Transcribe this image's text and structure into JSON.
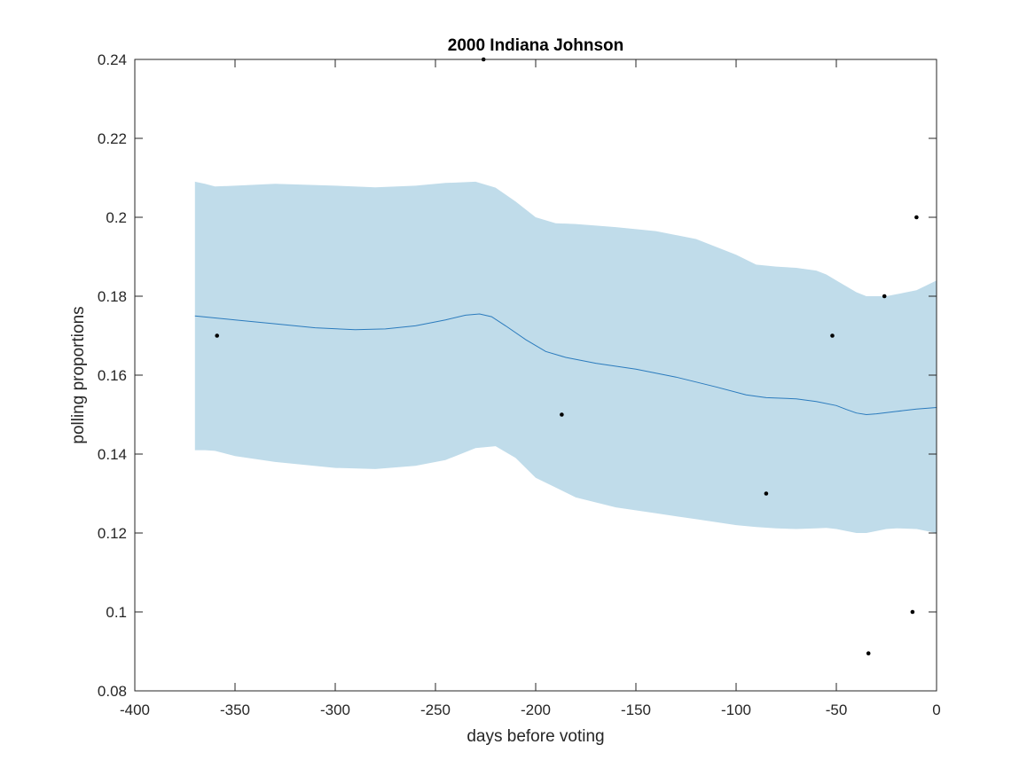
{
  "chart_data": {
    "type": "line",
    "title": "2000 Indiana Johnson",
    "xlabel": "days before voting",
    "ylabel": "polling proportions",
    "xlim": [
      -400,
      0
    ],
    "ylim": [
      0.08,
      0.24
    ],
    "xticks": [
      -400,
      -350,
      -300,
      -250,
      -200,
      -150,
      -100,
      -50,
      0
    ],
    "xtick_labels": [
      "-400",
      "-350",
      "-300",
      "-250",
      "-200",
      "-150",
      "-100",
      "-50",
      "0"
    ],
    "yticks": [
      0.08,
      0.1,
      0.12,
      0.14,
      0.16,
      0.18,
      0.2,
      0.22,
      0.24
    ],
    "ytick_labels": [
      "0.08",
      "0.1",
      "0.12",
      "0.14",
      "0.16",
      "0.18",
      "0.2",
      "0.22",
      "0.24"
    ],
    "grid": false,
    "band": {
      "color": "#c0dcea",
      "x": [
        -370,
        -365,
        -360,
        -350,
        -330,
        -300,
        -280,
        -260,
        -245,
        -230,
        -220,
        -210,
        -200,
        -190,
        -180,
        -160,
        -140,
        -120,
        -100,
        -90,
        -80,
        -70,
        -60,
        -55,
        -50,
        -45,
        -40,
        -35,
        -30,
        -25,
        -20,
        -10,
        0
      ],
      "upper": [
        0.209,
        0.2085,
        0.2078,
        0.208,
        0.2085,
        0.208,
        0.2076,
        0.208,
        0.2087,
        0.209,
        0.2075,
        0.204,
        0.2,
        0.1985,
        0.1983,
        0.1975,
        0.1965,
        0.1945,
        0.1905,
        0.188,
        0.1875,
        0.1872,
        0.1865,
        0.1855,
        0.184,
        0.1825,
        0.181,
        0.18,
        0.18,
        0.18,
        0.1805,
        0.1815,
        0.184
      ],
      "lower": [
        0.141,
        0.141,
        0.1408,
        0.1395,
        0.138,
        0.1365,
        0.1362,
        0.137,
        0.1385,
        0.1415,
        0.142,
        0.139,
        0.134,
        0.1315,
        0.129,
        0.1265,
        0.125,
        0.1235,
        0.122,
        0.1215,
        0.1212,
        0.121,
        0.1212,
        0.1213,
        0.121,
        0.1205,
        0.12,
        0.12,
        0.1205,
        0.121,
        0.1212,
        0.121,
        0.12
      ]
    },
    "series": [
      {
        "type": "line",
        "color": "#2b7bbd",
        "x": [
          -370,
          -350,
          -330,
          -310,
          -290,
          -275,
          -260,
          -245,
          -235,
          -228,
          -222,
          -215,
          -205,
          -195,
          -185,
          -170,
          -150,
          -130,
          -110,
          -95,
          -85,
          -70,
          -60,
          -50,
          -45,
          -40,
          -35,
          -30,
          -20,
          -10,
          0
        ],
        "y": [
          0.175,
          0.174,
          0.173,
          0.172,
          0.1715,
          0.1717,
          0.1725,
          0.174,
          0.1752,
          0.1755,
          0.1748,
          0.1725,
          0.169,
          0.166,
          0.1645,
          0.163,
          0.1615,
          0.1595,
          0.157,
          0.155,
          0.1543,
          0.154,
          0.1533,
          0.1523,
          0.1513,
          0.1504,
          0.15,
          0.1502,
          0.1508,
          0.1514,
          0.1518
        ]
      },
      {
        "type": "scatter",
        "color": "#000000",
        "x": [
          -359,
          -226,
          -187,
          -85,
          -52,
          -34,
          -26,
          -12,
          -10
        ],
        "y": [
          0.17,
          0.24,
          0.15,
          0.13,
          0.17,
          0.0895,
          0.18,
          0.1,
          0.2
        ]
      }
    ]
  }
}
